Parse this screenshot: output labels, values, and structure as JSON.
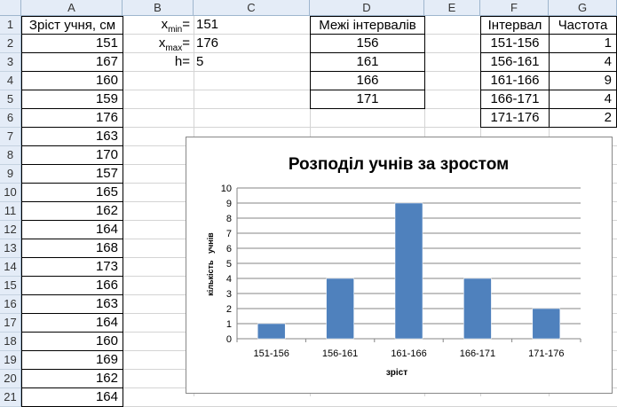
{
  "sheet": {
    "columns": [
      "A",
      "B",
      "C",
      "D",
      "E",
      "F",
      "G"
    ],
    "rows": [
      "1",
      "2",
      "3",
      "4",
      "5",
      "6",
      "7",
      "8",
      "9",
      "10",
      "11",
      "12",
      "13",
      "14",
      "15",
      "16",
      "17",
      "18",
      "19",
      "20",
      "21"
    ],
    "colA_header": "Зріст учня, см",
    "colA_values": [
      "151",
      "167",
      "160",
      "159",
      "176",
      "163",
      "170",
      "157",
      "165",
      "162",
      "164",
      "168",
      "173",
      "166",
      "163",
      "164",
      "160",
      "169",
      "162",
      "164"
    ],
    "xmin_label_main": "x",
    "xmin_label_sub": "min",
    "xmin_eq": "=",
    "xmin_value": "151",
    "xmax_label_main": "x",
    "xmax_label_sub": "max",
    "xmax_eq": "=",
    "xmax_value": "176",
    "h_label": "h=",
    "h_value": "5",
    "bounds_header": "Межі інтервалів",
    "bounds_values": [
      "156",
      "161",
      "166",
      "171"
    ],
    "freq_header_interval": "Інтервал",
    "freq_header_count": "Частота",
    "freq_rows": [
      {
        "interval": "151-156",
        "count": "1"
      },
      {
        "interval": "156-161",
        "count": "4"
      },
      {
        "interval": "161-166",
        "count": "9"
      },
      {
        "interval": "166-171",
        "count": "4"
      },
      {
        "interval": "171-176",
        "count": "2"
      }
    ]
  },
  "chart_data": {
    "type": "bar",
    "title": "Розподіл учнів за зростом",
    "xlabel": "зріст",
    "ylabel": "кількість   учнів",
    "categories": [
      "151-156",
      "156-161",
      "161-166",
      "166-171",
      "171-176"
    ],
    "values": [
      1,
      4,
      9,
      4,
      2
    ],
    "ylim": [
      0,
      10
    ],
    "yticks": [
      "0",
      "1",
      "2",
      "3",
      "4",
      "5",
      "6",
      "7",
      "8",
      "9",
      "10"
    ],
    "grid": true,
    "bar_color": "#4f81bd"
  }
}
